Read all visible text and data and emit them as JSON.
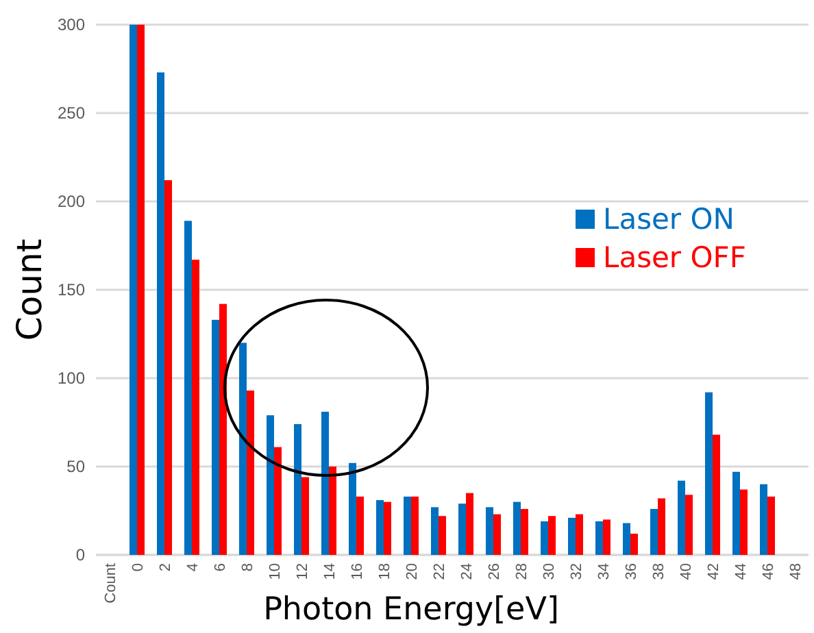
{
  "chart_data": {
    "type": "bar",
    "xlabel": "Photon Energy[eV]",
    "ylabel": "Count",
    "categories": [
      "Count",
      "0",
      "2",
      "4",
      "6",
      "8",
      "10",
      "12",
      "14",
      "16",
      "18",
      "20",
      "22",
      "24",
      "26",
      "28",
      "30",
      "32",
      "34",
      "36",
      "38",
      "40",
      "42",
      "44",
      "46",
      "48"
    ],
    "series": [
      {
        "name": "Laser ON",
        "color": "#0070c0",
        "values": [
          null,
          300,
          273,
          189,
          133,
          120,
          79,
          74,
          81,
          52,
          31,
          33,
          27,
          29,
          27,
          30,
          19,
          21,
          19,
          18,
          26,
          42,
          92,
          47,
          40,
          null
        ]
      },
      {
        "name": "Laser OFF",
        "color": "#ff0000",
        "values": [
          null,
          300,
          212,
          167,
          142,
          93,
          61,
          44,
          50,
          33,
          30,
          33,
          22,
          35,
          23,
          26,
          22,
          23,
          20,
          12,
          32,
          34,
          68,
          37,
          33,
          null
        ]
      }
    ],
    "ylim": [
      0,
      300
    ],
    "yticks": [
      0,
      50,
      100,
      150,
      200,
      250,
      300
    ],
    "grid": "y",
    "legend": "right"
  }
}
